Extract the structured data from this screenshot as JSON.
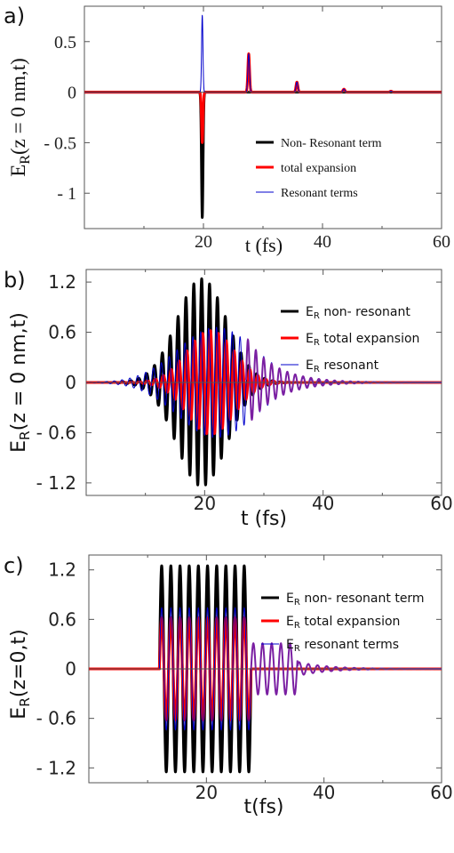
{
  "chart_data": [
    {
      "type": "line",
      "panel_label": "a)",
      "xlabel_main": "t (fs)",
      "ylabel_main": "E",
      "ylabel_sub": "R",
      "ylabel_tail": "(z = 0 nm,t)",
      "xlim": [
        0,
        60
      ],
      "ylim": [
        -1.35,
        0.85
      ],
      "xticks": [
        "20",
        "40",
        "60"
      ],
      "yticks": [
        "0.5",
        "0",
        "- 0.5",
        "- 1"
      ],
      "legend": [
        {
          "label": "Non- Resonant term",
          "color": "#000000"
        },
        {
          "label": "total expansion",
          "color": "#ff0000"
        },
        {
          "label": "Resonant terms",
          "color": "#0000cc"
        }
      ],
      "series": [
        {
          "name": "Non- Resonant term",
          "color": "#000000",
          "pulses": [
            {
              "t": 19.8,
              "a": -1.24,
              "w": 0.18
            }
          ]
        },
        {
          "name": "total expansion",
          "color": "#ff0000",
          "pulses": [
            {
              "t": 19.8,
              "a": -0.5,
              "w": 0.18
            },
            {
              "t": 27.6,
              "a": 0.38,
              "w": 0.2
            },
            {
              "t": 35.7,
              "a": 0.1,
              "w": 0.22
            },
            {
              "t": 43.6,
              "a": 0.03,
              "w": 0.24
            },
            {
              "t": 51.5,
              "a": 0.01,
              "w": 0.24
            }
          ]
        },
        {
          "name": "Resonant terms",
          "color": "#0000cc",
          "pulses": [
            {
              "t": 19.8,
              "a": 0.76,
              "w": 0.16
            },
            {
              "t": 27.6,
              "a": 0.38,
              "w": 0.2
            },
            {
              "t": 35.7,
              "a": 0.1,
              "w": 0.22
            },
            {
              "t": 43.6,
              "a": 0.03,
              "w": 0.24
            },
            {
              "t": 51.5,
              "a": 0.01,
              "w": 0.24
            }
          ]
        }
      ]
    },
    {
      "type": "line",
      "panel_label": "b)",
      "xlabel_main": "t (fs)",
      "ylabel_main": "E",
      "ylabel_sub": "R",
      "ylabel_tail": "(z = 0 nm,t)",
      "xlim": [
        0,
        60
      ],
      "ylim": [
        -1.35,
        1.35
      ],
      "xticks": [
        "20",
        "40",
        "60"
      ],
      "yticks": [
        "1.2",
        "0.6",
        "0",
        "- 0.6",
        "- 1.2"
      ],
      "legend": [
        {
          "pre": "E",
          "sub": "R",
          "label": " non- resonant",
          "color": "#000000"
        },
        {
          "pre": "E",
          "sub": "R",
          "label": " total expansion",
          "color": "#ff0000"
        },
        {
          "pre": "E",
          "sub": "R",
          "label": " resonant",
          "color": "#0000cc"
        }
      ],
      "series": [
        {
          "name": "E_R non- resonant",
          "color": "#000000",
          "center": 19.5,
          "sigma": 4.2,
          "amp": 1.24,
          "period": 1.33
        },
        {
          "name": "E_R total expansion",
          "color": "#ff0000",
          "center": 21.0,
          "sigma": 4.0,
          "amp": 0.62,
          "period": 1.33
        },
        {
          "name": "E_R resonant",
          "color": "#0000cc",
          "center": 22.0,
          "sigma": 6.5,
          "amp": 0.66,
          "period": 1.33
        }
      ]
    },
    {
      "type": "line",
      "panel_label": "c)",
      "xlabel_main": "t(fs)",
      "ylabel_main": "E",
      "ylabel_sub": "R",
      "ylabel_tail": "(z=0,t)",
      "xlim": [
        0,
        60
      ],
      "ylim": [
        -1.38,
        1.38
      ],
      "xticks": [
        "20",
        "40",
        "60"
      ],
      "yticks": [
        "1.2",
        "0.6",
        "0",
        "- 0.6",
        "- 1.2"
      ],
      "legend": [
        {
          "pre": "E",
          "sub": "R",
          "label": " non- resonant term",
          "color": "#000000"
        },
        {
          "pre": "E",
          "sub": "R",
          "label": " total expansion",
          "color": "#ff0000"
        },
        {
          "pre": "E",
          "sub": "R",
          "label": " resonant terms",
          "color": "#0000cc"
        }
      ],
      "series": [
        {
          "name": "E_R non- resonant term",
          "color": "#000000",
          "t_start": 12.0,
          "t_end": 27.6,
          "amp": 1.25,
          "period": 1.56
        },
        {
          "name": "E_R total expansion",
          "color": "#ff0000",
          "t_start": 12.0,
          "t_end": 27.6,
          "amp": 0.62,
          "period": 1.56
        },
        {
          "name": "E_R resonant terms",
          "color": "#0000cc",
          "t_start": 12.0,
          "t_end": 27.6,
          "amp": 0.74,
          "period": 1.56
        }
      ]
    }
  ]
}
